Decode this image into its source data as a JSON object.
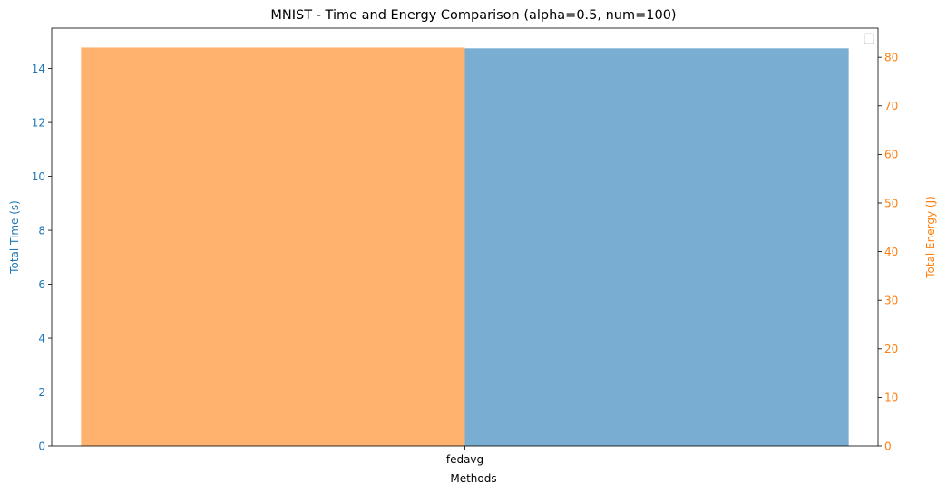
{
  "chart_data": {
    "type": "bar",
    "title": "MNIST - Time and Energy Comparison (alpha=0.5, num=100)",
    "xlabel": "Methods",
    "categories": [
      "fedavg"
    ],
    "left_axis": {
      "label": "Total Time (s)",
      "color": "#1f77b4",
      "ylim": [
        0,
        15.5
      ],
      "ticks": [
        0,
        2,
        4,
        6,
        8,
        10,
        12,
        14
      ]
    },
    "right_axis": {
      "label": "Total Energy (J)",
      "color": "#ff7f0e",
      "ylim": [
        0,
        86
      ],
      "ticks": [
        0,
        10,
        20,
        30,
        40,
        50,
        60,
        70,
        80
      ]
    },
    "series": [
      {
        "axis": "left",
        "color": "#1f77b4",
        "opacity": 0.6,
        "offset": "right",
        "values": [
          14.75
        ]
      },
      {
        "axis": "right",
        "color": "#ff7f0e",
        "opacity": 0.6,
        "offset": "left",
        "values": [
          82.0
        ]
      }
    ],
    "legend": {
      "position": "upper right",
      "entries": []
    },
    "grid": false
  }
}
